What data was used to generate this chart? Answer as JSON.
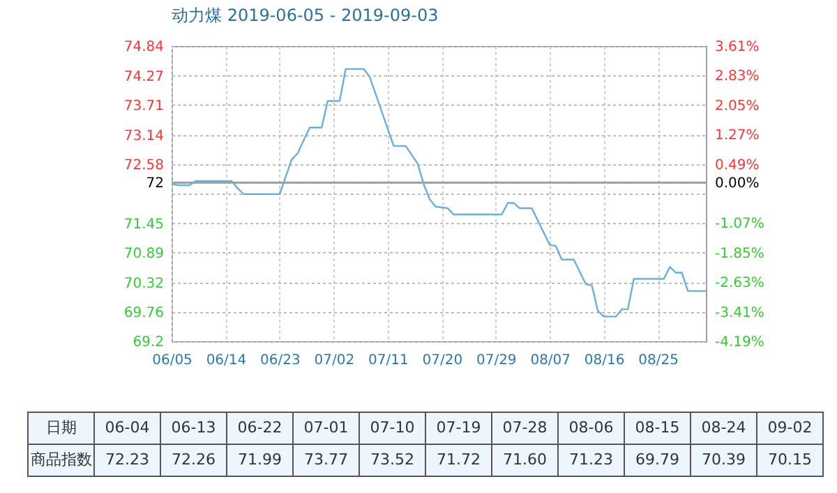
{
  "chart_data": [
    {
      "type": "line",
      "title": "动力煤 2019-06-05 - 2019-09-03",
      "x": [
        "2019-06-05",
        "2019-06-06",
        "2019-06-08",
        "2019-06-09",
        "2019-06-15",
        "2019-06-16",
        "2019-06-17",
        "2019-06-23",
        "2019-06-25",
        "2019-06-26",
        "2019-06-28",
        "2019-06-30",
        "2019-07-01",
        "2019-07-03",
        "2019-07-04",
        "2019-07-07",
        "2019-07-08",
        "2019-07-11",
        "2019-07-12",
        "2019-07-14",
        "2019-07-16",
        "2019-07-17",
        "2019-07-18",
        "2019-07-19",
        "2019-07-21",
        "2019-07-22",
        "2019-07-30",
        "2019-07-31",
        "2019-08-01",
        "2019-08-02",
        "2019-08-04",
        "2019-08-07",
        "2019-08-08",
        "2019-08-09",
        "2019-08-11",
        "2019-08-13",
        "2019-08-14",
        "2019-08-15",
        "2019-08-16",
        "2019-08-18",
        "2019-08-19",
        "2019-08-20",
        "2019-08-21",
        "2019-08-26",
        "2019-08-27",
        "2019-08-28",
        "2019-08-29",
        "2019-08-30",
        "2019-09-02"
      ],
      "series": [
        {
          "color": "#6aaee0",
          "values": [
            72.21,
            72.18,
            72.18,
            72.26,
            72.26,
            72.12,
            72.01,
            72.01,
            72.67,
            72.79,
            73.28,
            73.28,
            73.79,
            73.79,
            74.4,
            74.4,
            74.25,
            73.26,
            72.93,
            72.93,
            72.59,
            72.2,
            71.91,
            71.77,
            71.74,
            71.62,
            71.62,
            71.84,
            71.84,
            71.74,
            71.74,
            71.04,
            71.02,
            70.76,
            70.76,
            70.29,
            70.27,
            69.78,
            69.67,
            69.67,
            69.81,
            69.81,
            70.39,
            70.39,
            70.62,
            70.51,
            70.51,
            70.16,
            70.16
          ]
        }
      ],
      "xlim": [
        "2019-06-05",
        "2019-09-02"
      ],
      "xticks": [
        {
          "value": "2019-06-05",
          "label": "06/05"
        },
        {
          "value": "2019-06-14",
          "label": "06/14"
        },
        {
          "value": "2019-06-23",
          "label": "06/23"
        },
        {
          "value": "2019-07-02",
          "label": "07/02"
        },
        {
          "value": "2019-07-11",
          "label": "07/11"
        },
        {
          "value": "2019-07-20",
          "label": "07/20"
        },
        {
          "value": "2019-07-29",
          "label": "07/29"
        },
        {
          "value": "2019-08-07",
          "label": "08/07"
        },
        {
          "value": "2019-08-16",
          "label": "08/16"
        },
        {
          "value": "2019-08-25",
          "label": "08/25"
        }
      ],
      "ylim": [
        69.2,
        74.84
      ],
      "yticks": [
        69.2,
        69.76,
        70.32,
        70.89,
        71.45,
        {
          "value": 72.02,
          "label": null
        },
        {
          "value": 72.23,
          "label": "72"
        },
        72.58,
        73.14,
        73.71,
        74.27,
        74.84
      ],
      "y2lim": [
        -4.19,
        3.61
      ],
      "y2ticks": [
        {
          "value": -4.19,
          "label": "-4.19%"
        },
        {
          "value": -3.41,
          "label": "-3.41%"
        },
        {
          "value": -2.63,
          "label": "-2.63%"
        },
        {
          "value": -1.85,
          "label": "-1.85%"
        },
        {
          "value": -1.07,
          "label": "-1.07%"
        },
        {
          "value": 0,
          "label": "0.00%"
        },
        {
          "value": 0.49,
          "label": "0.49%"
        },
        {
          "value": 1.27,
          "label": "1.27%"
        },
        {
          "value": 2.05,
          "label": "2.05%"
        },
        {
          "value": 2.83,
          "label": "2.83%"
        },
        {
          "value": 3.61,
          "label": "3.61%"
        }
      ],
      "ref_lines": [
        {
          "axis": "y",
          "value": 72.23,
          "color": "#a0a0a0"
        }
      ],
      "grid": true,
      "legend": false,
      "marker": "none"
    },
    {
      "type": "other",
      "xlabel": "日期",
      "ylabel": "商品指数",
      "categories": [
        "06-04",
        "06-13",
        "06-22",
        "07-01",
        "07-10",
        "07-19",
        "07-28",
        "08-06",
        "08-15",
        "08-24",
        "09-02"
      ],
      "values": [
        72.23,
        72.26,
        71.99,
        73.77,
        73.52,
        71.72,
        71.6,
        71.23,
        69.79,
        70.39,
        70.15
      ],
      "data_labels": true,
      "value_labels": [
        "72.23",
        "72.26",
        "71.99",
        "73.77",
        "73.52",
        "71.72",
        "71.60",
        "71.23",
        "69.79",
        "70.39",
        "70.15"
      ]
    }
  ]
}
